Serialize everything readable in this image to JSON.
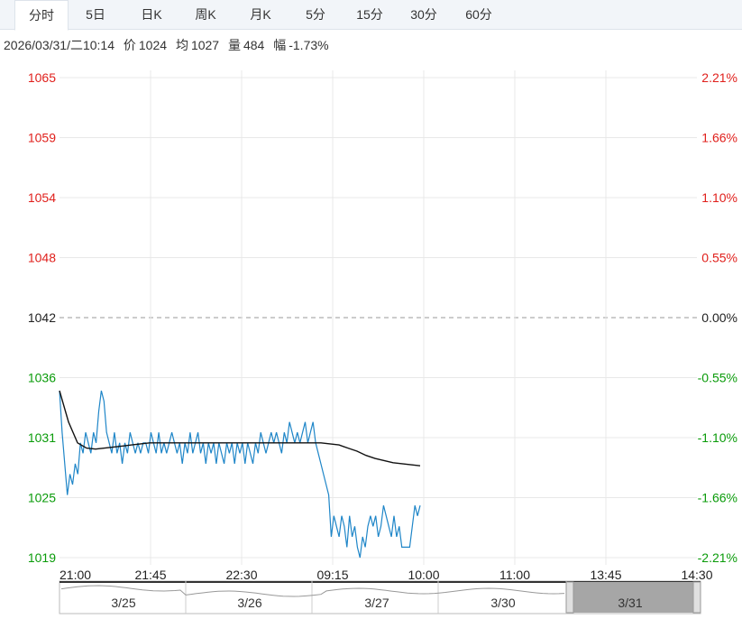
{
  "tabs": [
    {
      "label": "分时",
      "active": true
    },
    {
      "label": "5日",
      "active": false
    },
    {
      "label": "日K",
      "active": false
    },
    {
      "label": "周K",
      "active": false
    },
    {
      "label": "月K",
      "active": false
    },
    {
      "label": "5分",
      "active": false
    },
    {
      "label": "15分",
      "active": false
    },
    {
      "label": "30分",
      "active": false
    },
    {
      "label": "60分",
      "active": false
    }
  ],
  "info": {
    "datetime": "2026/03/31/二10:14",
    "price_label": "价",
    "price": "1024",
    "avg_label": "均",
    "avg": "1027",
    "volume_label": "量",
    "volume": "484",
    "change_label": "幅",
    "change": "-1.73%"
  },
  "colors": {
    "up": "#e0201c",
    "down": "#0a9b0a",
    "flat": "#222222",
    "price_line": "#1f86c8",
    "avg_line": "#111111",
    "grid": "#e8e8e8"
  },
  "chart_data": {
    "type": "line",
    "series": [],
    "ref_price": 1042,
    "y_ticks": [
      "1065",
      "1059",
      "1054",
      "1048",
      "1042",
      "1036",
      "1031",
      "1025",
      "1019"
    ],
    "y_pct_ticks": [
      "2.21%",
      "1.66%",
      "1.10%",
      "0.55%",
      "0.00%",
      "-0.55%",
      "-1.10%",
      "-1.66%",
      "-2.21%"
    ],
    "ylim": [
      1019,
      1065
    ],
    "x_ticks": [
      "21:00",
      "21:45",
      "22:30",
      "09:15",
      "10:00",
      "11:00",
      "13:45",
      "14:30"
    ],
    "price": [
      1035,
      1031,
      1028,
      1025,
      1027,
      1026,
      1028,
      1027,
      1030,
      1029,
      1031,
      1030,
      1029,
      1031,
      1030,
      1033,
      1035,
      1034,
      1031,
      1030,
      1029,
      1031,
      1029,
      1030,
      1028,
      1030,
      1029,
      1031,
      1030,
      1029,
      1030,
      1029,
      1030,
      1030,
      1029,
      1031,
      1030,
      1029,
      1031,
      1029,
      1030,
      1029,
      1030,
      1031,
      1030,
      1029,
      1030,
      1028,
      1030,
      1029,
      1031,
      1029,
      1030,
      1031,
      1029,
      1030,
      1028,
      1030,
      1029,
      1030,
      1028,
      1030,
      1029,
      1028,
      1030,
      1029,
      1030,
      1028,
      1030,
      1029,
      1030,
      1028,
      1030,
      1029,
      1028,
      1030,
      1029,
      1031,
      1030,
      1029,
      1030,
      1031,
      1030,
      1031,
      1030,
      1029,
      1031,
      1030,
      1032,
      1031,
      1030,
      1031,
      1030,
      1031,
      1032,
      1030,
      1031,
      1032,
      1030,
      1029,
      1028,
      1027,
      1026,
      1025,
      1021,
      1023,
      1022,
      1021,
      1023,
      1022,
      1020,
      1023,
      1021,
      1022,
      1020,
      1019,
      1021,
      1020,
      1022,
      1023,
      1022,
      1023,
      1021,
      1022,
      1024,
      1023,
      1022,
      1021,
      1023,
      1021,
      1022,
      1020,
      1020,
      1020,
      1020,
      1022,
      1024,
      1023,
      1024
    ],
    "avg": [
      1035,
      1032,
      1030,
      1029.5,
      1029.4,
      1029.5,
      1029.6,
      1029.7,
      1029.8,
      1029.9,
      1030,
      1030,
      1030,
      1030,
      1030,
      1030,
      1030,
      1030,
      1030,
      1030,
      1030,
      1030,
      1030,
      1030,
      1030,
      1030,
      1030,
      1030,
      1030,
      1030,
      1029.9,
      1029.8,
      1029.5,
      1029.2,
      1028.8,
      1028.5,
      1028.3,
      1028.1,
      1028,
      1027.9,
      1027.8
    ]
  },
  "navigator": {
    "dates": [
      "3/25",
      "3/26",
      "3/27",
      "3/30",
      "3/31"
    ]
  }
}
